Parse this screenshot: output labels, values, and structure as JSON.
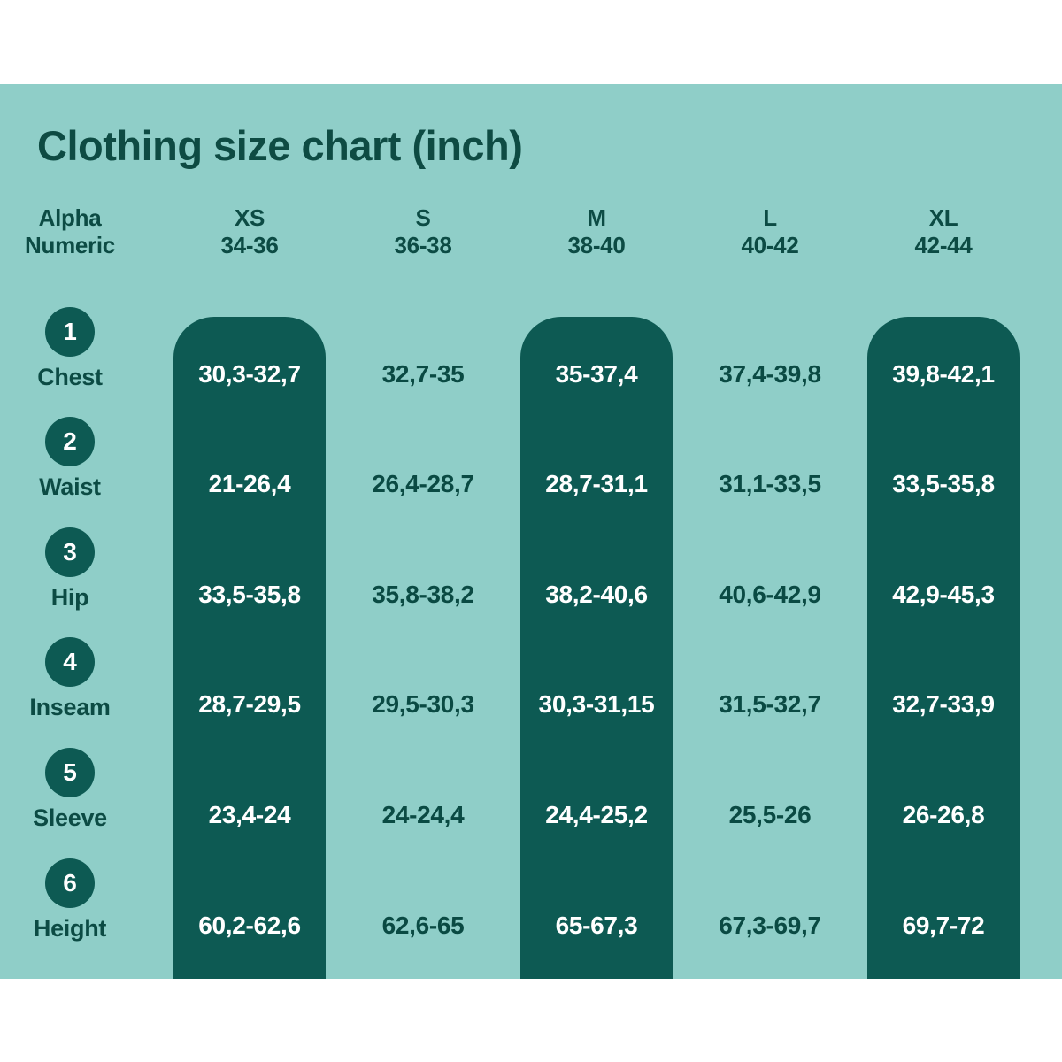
{
  "title": "Clothing size chart (inch)",
  "colors": {
    "panel_background": "#8FCEC8",
    "highlight_pill": "#0D5A53",
    "dark_text": "#0C4B44",
    "light_text": "#FFFFFF",
    "page_background": "#FFFFFF"
  },
  "header": {
    "label_column": [
      "Alpha",
      "Numeric"
    ],
    "columns": [
      {
        "alpha": "XS",
        "numeric": "34-36",
        "highlighted": true
      },
      {
        "alpha": "S",
        "numeric": "36-38",
        "highlighted": false
      },
      {
        "alpha": "M",
        "numeric": "38-40",
        "highlighted": true
      },
      {
        "alpha": "L",
        "numeric": "40-42",
        "highlighted": false
      },
      {
        "alpha": "XL",
        "numeric": "42-44",
        "highlighted": true
      }
    ]
  },
  "rows": [
    {
      "number": "1",
      "label": "Chest",
      "values": [
        "30,3-32,7",
        "32,7-35",
        "35-37,4",
        "37,4-39,8",
        "39,8-42,1"
      ]
    },
    {
      "number": "2",
      "label": "Waist",
      "values": [
        "21-26,4",
        "26,4-28,7",
        "28,7-31,1",
        "31,1-33,5",
        "33,5-35,8"
      ]
    },
    {
      "number": "3",
      "label": "Hip",
      "values": [
        "33,5-35,8",
        "35,8-38,2",
        "38,2-40,6",
        "40,6-42,9",
        "42,9-45,3"
      ]
    },
    {
      "number": "4",
      "label": "Inseam",
      "values": [
        "28,7-29,5",
        "29,5-30,3",
        "30,3-31,15",
        "31,5-32,7",
        "32,7-33,9"
      ]
    },
    {
      "number": "5",
      "label": "Sleeve",
      "values": [
        "23,4-24",
        "24-24,4",
        "24,4-25,2",
        "25,5-26",
        "26-26,8"
      ]
    },
    {
      "number": "6",
      "label": "Height",
      "values": [
        "60,2-62,6",
        "62,6-65",
        "65-67,3",
        "67,3-69,7",
        "69,7-72"
      ]
    }
  ],
  "chart_data": {
    "type": "table",
    "title": "Clothing size chart (inch)",
    "columns": [
      "XS 34-36",
      "S 36-38",
      "M 38-40",
      "L 40-42",
      "XL 42-44"
    ],
    "highlighted_columns": [
      "XS",
      "M",
      "XL"
    ],
    "row_labels": [
      "Chest",
      "Waist",
      "Hip",
      "Inseam",
      "Sleeve",
      "Height"
    ],
    "cells": [
      [
        "30,3-32,7",
        "32,7-35",
        "35-37,4",
        "37,4-39,8",
        "39,8-42,1"
      ],
      [
        "21-26,4",
        "26,4-28,7",
        "28,7-31,1",
        "31,1-33,5",
        "33,5-35,8"
      ],
      [
        "33,5-35,8",
        "35,8-38,2",
        "38,2-40,6",
        "40,6-42,9",
        "42,9-45,3"
      ],
      [
        "28,7-29,5",
        "29,5-30,3",
        "30,3-31,15",
        "31,5-32,7",
        "32,7-33,9"
      ],
      [
        "23,4-24",
        "24-24,4",
        "24,4-25,2",
        "25,5-26",
        "26-26,8"
      ],
      [
        "60,2-62,6",
        "62,6-65",
        "65-67,3",
        "67,3-69,7",
        "69,7-72"
      ]
    ]
  }
}
